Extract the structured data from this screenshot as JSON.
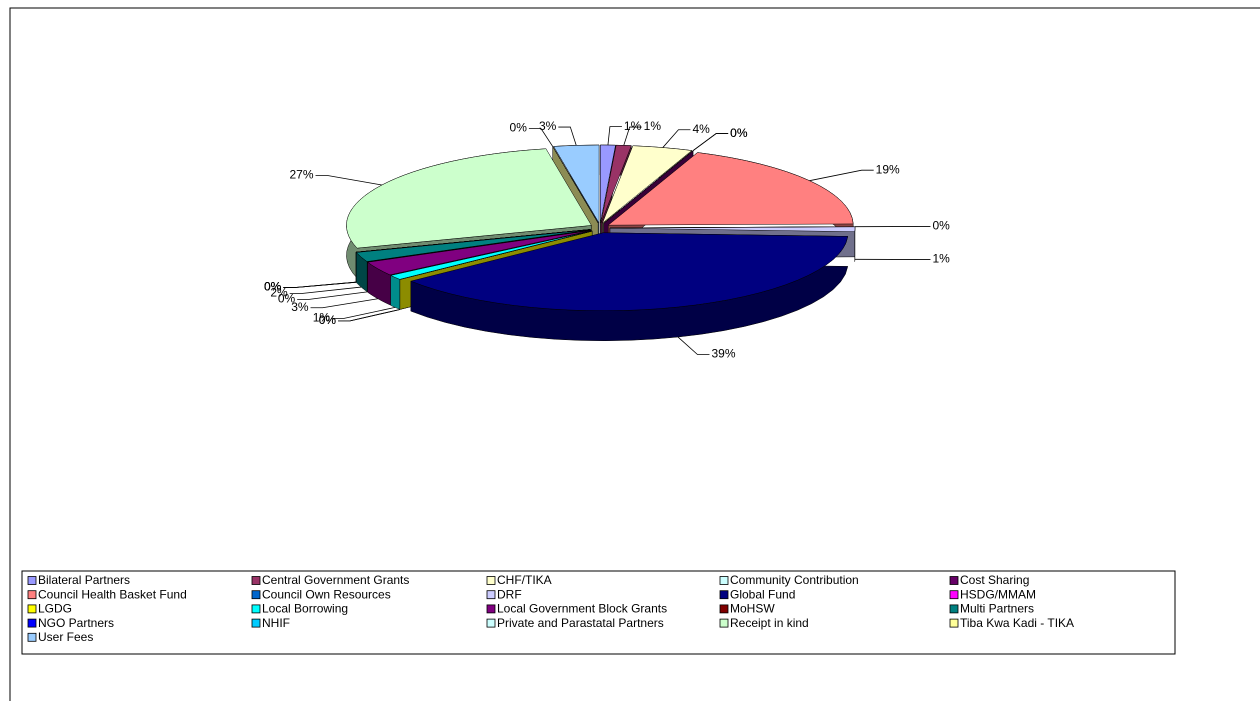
{
  "chart_data": {
    "type": "pie",
    "categories": [
      "Bilateral Partners",
      "Central Government Grants",
      "CHF/TIKA",
      "Community Contribution",
      "Cost Sharing",
      "Council Health Basket Fund",
      "Council Own Resources",
      "DRF",
      "Global Fund",
      "HSDG/MMAM",
      "LGDG",
      "Local Borrowing",
      "Local Government Block Grants",
      "MoHSW",
      "Multi Partners",
      "NGO Partners",
      "NHIF",
      "Private and Parastatal Partners",
      "Receipt in kind",
      "Tiba Kwa Kadi - TIKA",
      "User Fees"
    ],
    "values": [
      1,
      1,
      4,
      0,
      0,
      19,
      0,
      1,
      39,
      0,
      0,
      1,
      3,
      0,
      2,
      0,
      0,
      0,
      27,
      0,
      3
    ],
    "value_labels": [
      "1%",
      "1%",
      "4%",
      "0%",
      "0%",
      "19%",
      "0%",
      "1%",
      "39%",
      "0%",
      "0%",
      "1%",
      "3%",
      "0%",
      "2%",
      "0%",
      "0%",
      "0%",
      "27%",
      "0%",
      "3%"
    ],
    "colors": [
      "#9999ff",
      "#993366",
      "#ffffcc",
      "#ccffff",
      "#660066",
      "#ff8080",
      "#0066cc",
      "#ccccff",
      "#000080",
      "#ff00ff",
      "#ffff00",
      "#00ffff",
      "#800080",
      "#800000",
      "#008080",
      "#0000ff",
      "#00ccff",
      "#ccffff",
      "#ccffcc",
      "#ffff99",
      "#99ccff"
    ],
    "legend": "bottom"
  }
}
